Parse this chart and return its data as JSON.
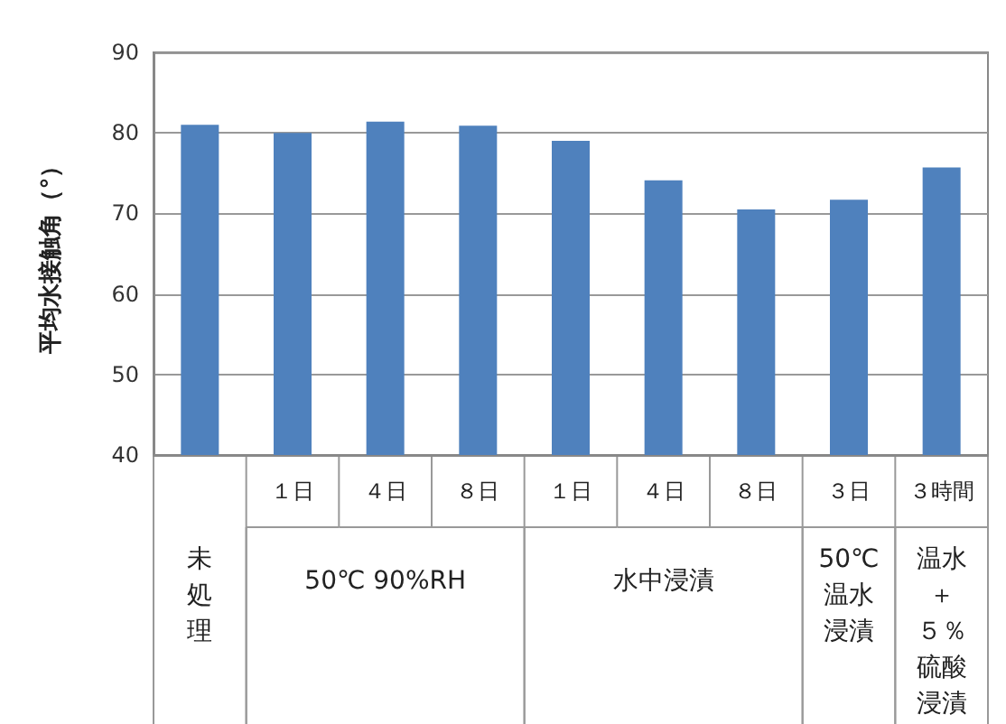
{
  "chart_data": {
    "type": "bar",
    "ylabel": "平均水接触角（°）",
    "categories": [
      null,
      "１日",
      "４日",
      "８日",
      "１日",
      "４日",
      "８日",
      "３日",
      "３時間"
    ],
    "values": [
      81,
      80,
      81.4,
      80.9,
      79,
      74.1,
      70.5,
      71.7,
      75.7
    ],
    "color": "#4f81bd",
    "ylim": [
      40,
      90
    ],
    "yticks": [
      40,
      50,
      60,
      70,
      80,
      90
    ],
    "grid": "y",
    "annotations": [
      "未処理",
      "50℃ 90%RH",
      "水中浸漬",
      "50℃温水浸漬",
      "温水＋５％硫酸浸漬"
    ]
  }
}
